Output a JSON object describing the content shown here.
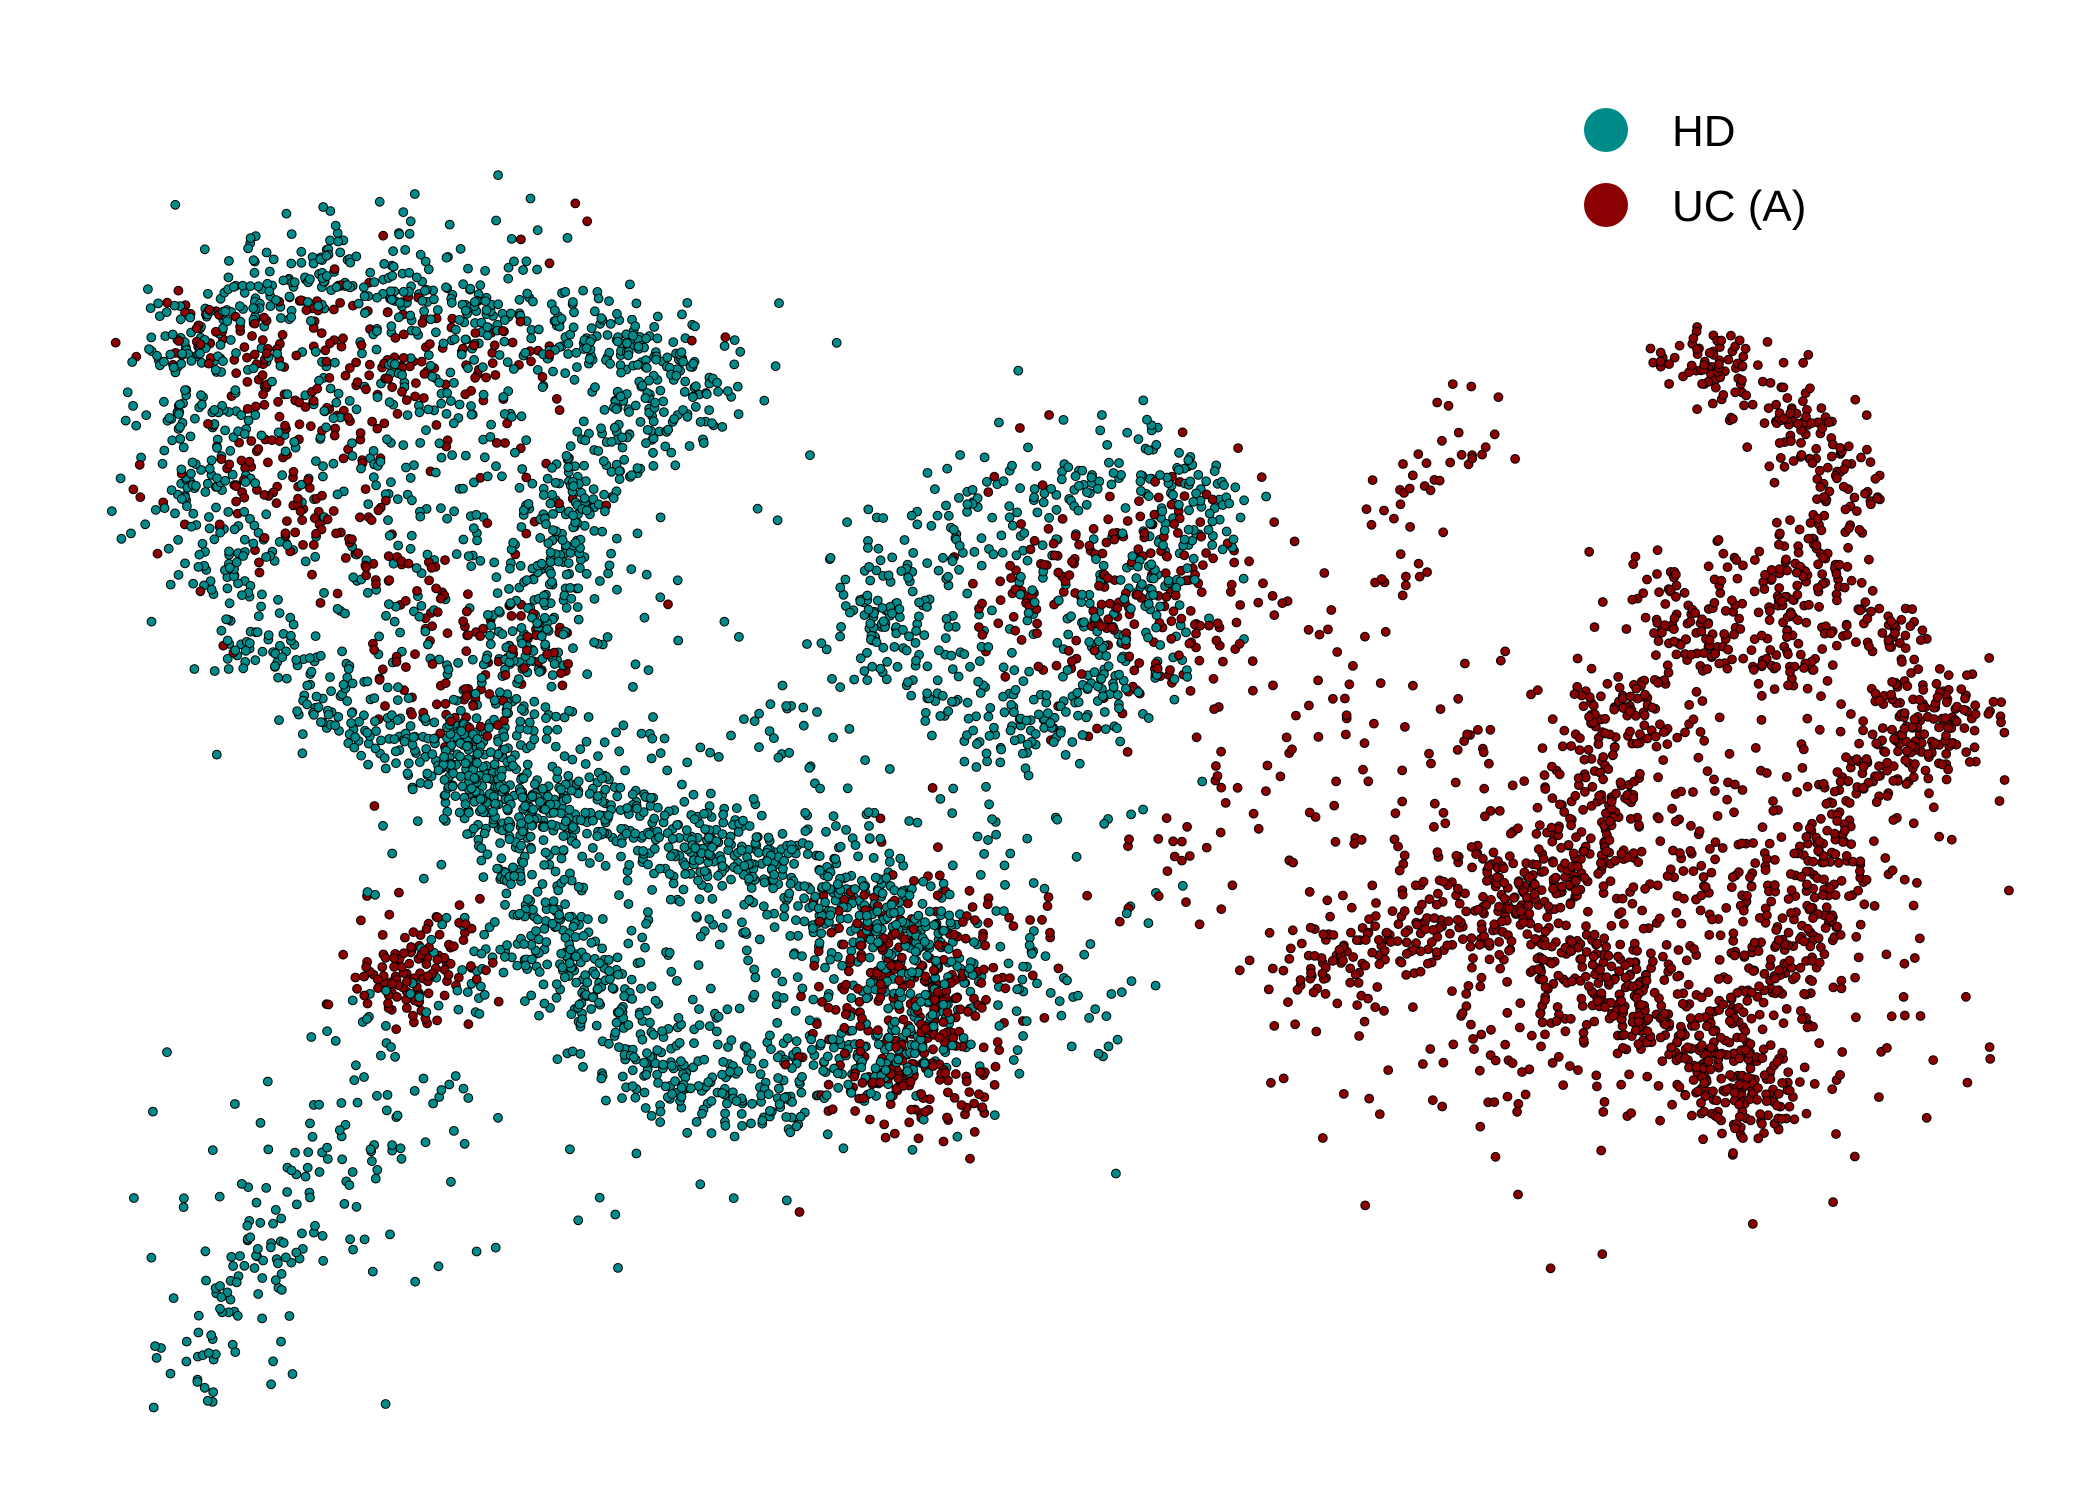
{
  "chart_data": {
    "type": "scatter",
    "title": "",
    "xlabel": "",
    "ylabel": "",
    "xlim": [
      0,
      100
    ],
    "ylim": [
      0,
      70
    ],
    "grid": false,
    "axes_visible": false,
    "legend_placement": "top-right",
    "marker_outline_color": "#000000",
    "series": [
      {
        "name": "HD",
        "color": "#008b8b",
        "clusters": [
          {
            "region": "upper-left",
            "n": 1500,
            "cx": 15.5,
            "cy": 52.5,
            "sx": 7.0,
            "sy": 7.0,
            "points": [
              [
                5,
                59
              ],
              [
                8,
                62
              ],
              [
                12,
                63
              ],
              [
                16,
                62
              ],
              [
                20,
                61
              ],
              [
                24,
                60
              ],
              [
                27,
                59
              ],
              [
                30,
                58
              ],
              [
                31,
                56
              ],
              [
                28,
                55
              ],
              [
                26,
                53
              ],
              [
                25,
                50
              ],
              [
                24,
                47
              ],
              [
                23,
                44
              ],
              [
                22,
                41
              ],
              [
                21,
                38
              ],
              [
                18,
                37
              ],
              [
                15,
                38
              ],
              [
                12,
                40
              ],
              [
                9,
                43
              ],
              [
                7,
                47
              ],
              [
                5,
                51
              ],
              [
                5,
                55
              ]
            ]
          },
          {
            "region": "lower-left-lobe",
            "n": 1600,
            "cx": 34.0,
            "cy": 28.0,
            "sx": 8.0,
            "sy": 6.0,
            "points": [
              [
                19,
                37
              ],
              [
                22,
                35
              ],
              [
                25,
                34
              ],
              [
                28,
                33
              ],
              [
                31,
                32
              ],
              [
                34,
                31
              ],
              [
                37,
                30
              ],
              [
                40,
                29
              ],
              [
                42,
                27
              ],
              [
                43,
                24
              ],
              [
                42,
                21
              ],
              [
                39,
                20
              ],
              [
                35,
                19
              ],
              [
                31,
                19
              ],
              [
                28,
                21
              ],
              [
                26,
                24
              ],
              [
                24,
                27
              ],
              [
                23,
                30
              ],
              [
                22,
                33
              ],
              [
                20,
                35
              ]
            ]
          },
          {
            "region": "middle-upper",
            "n": 600,
            "cx": 48.0,
            "cy": 44.5,
            "sx": 5.0,
            "sy": 5.0,
            "points": [
              [
                40,
                45
              ],
              [
                42,
                48
              ],
              [
                45,
                50
              ],
              [
                48,
                51
              ],
              [
                51,
                52
              ],
              [
                54,
                53
              ],
              [
                56,
                52
              ],
              [
                58,
                51
              ],
              [
                57,
                49
              ],
              [
                55,
                47
              ],
              [
                53,
                45
              ],
              [
                54,
                42
              ],
              [
                53,
                40
              ],
              [
                50,
                39
              ],
              [
                48,
                38
              ],
              [
                46,
                38
              ],
              [
                44,
                40
              ],
              [
                42,
                42
              ],
              [
                41,
                44
              ]
            ]
          },
          {
            "region": "bottom-left-tail",
            "n": 220,
            "cx": 10.0,
            "cy": 12.0,
            "sx": 4.0,
            "sy": 4.0,
            "points": [
              [
                5,
                4
              ],
              [
                6,
                5
              ],
              [
                7,
                7
              ],
              [
                8,
                9
              ],
              [
                9,
                11
              ],
              [
                10,
                13
              ],
              [
                11,
                15
              ],
              [
                13,
                16
              ],
              [
                15,
                17
              ],
              [
                17,
                18
              ],
              [
                13,
                20
              ],
              [
                15,
                22
              ],
              [
                18,
                24
              ],
              [
                20,
                26
              ]
            ]
          },
          {
            "region": "bridge",
            "n": 80,
            "cx": 42.0,
            "cy": 28.0,
            "sx": 8.0,
            "sy": 4.0,
            "points": [
              [
                46,
                24
              ],
              [
                48,
                25
              ],
              [
                50,
                24
              ],
              [
                52,
                23
              ],
              [
                44,
                26
              ],
              [
                40,
                33
              ],
              [
                32,
                37
              ],
              [
                35,
                39
              ]
            ]
          }
        ]
      },
      {
        "name": "UC (A)",
        "color": "#8b0000",
        "clusters": [
          {
            "region": "right-group",
            "n": 2200,
            "cx": 79.0,
            "cy": 28.0,
            "sx": 8.0,
            "sy": 6.0,
            "points": [
              [
                64,
                26
              ],
              [
                67,
                27
              ],
              [
                70,
                28
              ],
              [
                73,
                29
              ],
              [
                75,
                30
              ],
              [
                77,
                32
              ],
              [
                78,
                35
              ],
              [
                79,
                38
              ],
              [
                80,
                40
              ],
              [
                76,
                26
              ],
              [
                78,
                24
              ],
              [
                80,
                23
              ],
              [
                82,
                22
              ],
              [
                84,
                20
              ],
              [
                86,
                19
              ],
              [
                85,
                18
              ],
              [
                83,
                21
              ],
              [
                87,
                24
              ],
              [
                88,
                27
              ],
              [
                89,
                30
              ],
              [
                90,
                33
              ],
              [
                91,
                36
              ],
              [
                93,
                38
              ],
              [
                94,
                40
              ],
              [
                96,
                39
              ],
              [
                87,
                42
              ],
              [
                88,
                45
              ],
              [
                89,
                48
              ],
              [
                90,
                52
              ],
              [
                88,
                55
              ],
              [
                85,
                57
              ],
              [
                83,
                58
              ],
              [
                81,
                45
              ],
              [
                83,
                43
              ],
              [
                86,
                47
              ],
              [
                92,
                44
              ],
              [
                95,
                37
              ]
            ]
          },
          {
            "region": "diagonal-strand",
            "n": 140,
            "cx": 62.0,
            "cy": 40.0,
            "sx": 7.0,
            "sy": 7.0,
            "points": [
              [
                48,
                27
              ],
              [
                50,
                28
              ],
              [
                52,
                29
              ],
              [
                54,
                30
              ],
              [
                56,
                32
              ],
              [
                58,
                34
              ],
              [
                60,
                36
              ],
              [
                62,
                38
              ],
              [
                63,
                40
              ],
              [
                64,
                42
              ],
              [
                65,
                44
              ],
              [
                66,
                46
              ],
              [
                67,
                48
              ],
              [
                68,
                50
              ],
              [
                69,
                52
              ],
              [
                70,
                54
              ],
              [
                71,
                55
              ],
              [
                72,
                53
              ]
            ]
          },
          {
            "region": "upper-left-mix",
            "n": 450,
            "cx": 14.0,
            "cy": 54.0,
            "sx": 7.0,
            "sy": 6.0,
            "points": [
              [
                6,
                60
              ],
              [
                9,
                58
              ],
              [
                12,
                60
              ],
              [
                15,
                57
              ],
              [
                18,
                59
              ],
              [
                22,
                58
              ],
              [
                8,
                52
              ],
              [
                11,
                50
              ],
              [
                14,
                48
              ],
              [
                17,
                46
              ],
              [
                20,
                44
              ],
              [
                23,
                42
              ],
              [
                16,
                41
              ],
              [
                19,
                39
              ],
              [
                13,
                55
              ],
              [
                10,
                55
              ]
            ]
          },
          {
            "region": "middle-edge",
            "n": 220,
            "cx": 52.0,
            "cy": 46.0,
            "sx": 4.0,
            "sy": 4.0,
            "points": [
              [
                52,
                48
              ],
              [
                54,
                49
              ],
              [
                56,
                50
              ],
              [
                57,
                48
              ],
              [
                55,
                46
              ],
              [
                53,
                44
              ],
              [
                51,
                43
              ],
              [
                49,
                46
              ],
              [
                47,
                45
              ],
              [
                55,
                41
              ],
              [
                58,
                44
              ]
            ]
          },
          {
            "region": "lower-left-edge",
            "n": 350,
            "cx": 42.5,
            "cy": 23.0,
            "sx": 2.5,
            "sy": 4.5,
            "points": [
              [
                40,
                28
              ],
              [
                41,
                26
              ],
              [
                42,
                24
              ],
              [
                43,
                22
              ],
              [
                44,
                20
              ],
              [
                42,
                19
              ],
              [
                40,
                20
              ],
              [
                45,
                24
              ],
              [
                44,
                27
              ],
              [
                39,
                23
              ]
            ]
          },
          {
            "region": "left-small-cluster",
            "n": 120,
            "cx": 16.5,
            "cy": 25.5,
            "sx": 1.8,
            "sy": 1.4,
            "points": [
              [
                15,
                25
              ],
              [
                16,
                26
              ],
              [
                17,
                27
              ],
              [
                18,
                25
              ],
              [
                16,
                24
              ]
            ]
          }
        ]
      }
    ]
  }
}
